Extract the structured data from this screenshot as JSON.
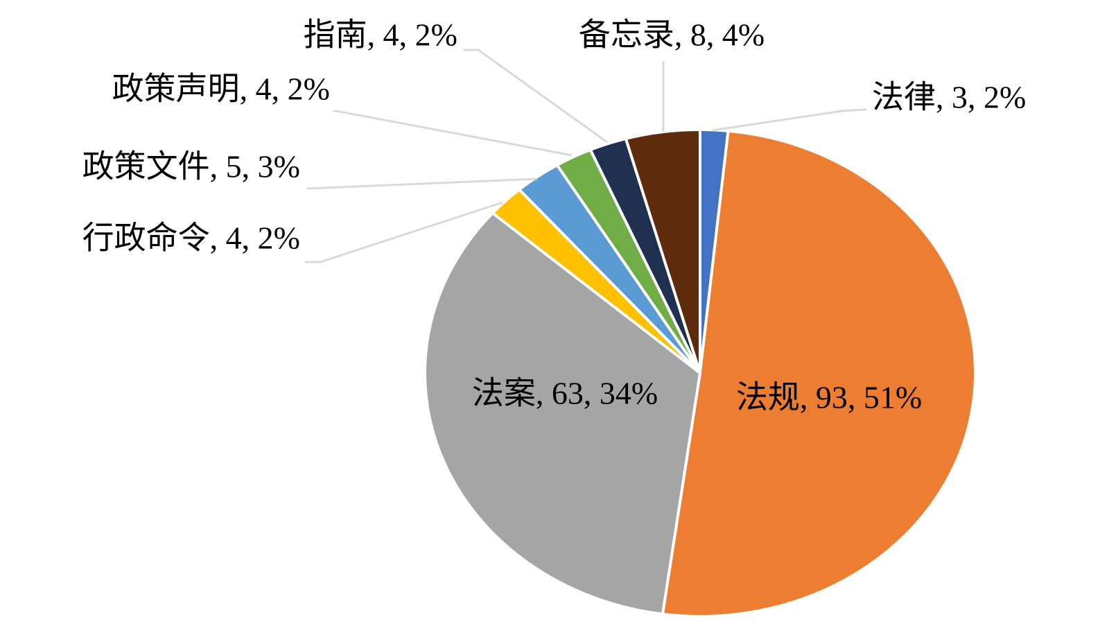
{
  "chart_data": {
    "type": "pie",
    "values": [
      3,
      93,
      63,
      4,
      5,
      4,
      4,
      8
    ],
    "value_labels": [
      "法律, 3, 2%",
      "法规, 93, 51%",
      "法案, 63, 34%",
      "行政命令, 4, 2%",
      "政策文件, 5, 3%",
      "政策声明, 4, 2%",
      "指南, 4, 2%",
      "备忘录, 8, 4%"
    ],
    "colors": [
      "#4472c4",
      "#ed7d31",
      "#a5a5a5",
      "#ffc000",
      "#5b9bd5",
      "#70ad47",
      "#1f3050",
      "#5e2c0c"
    ]
  }
}
